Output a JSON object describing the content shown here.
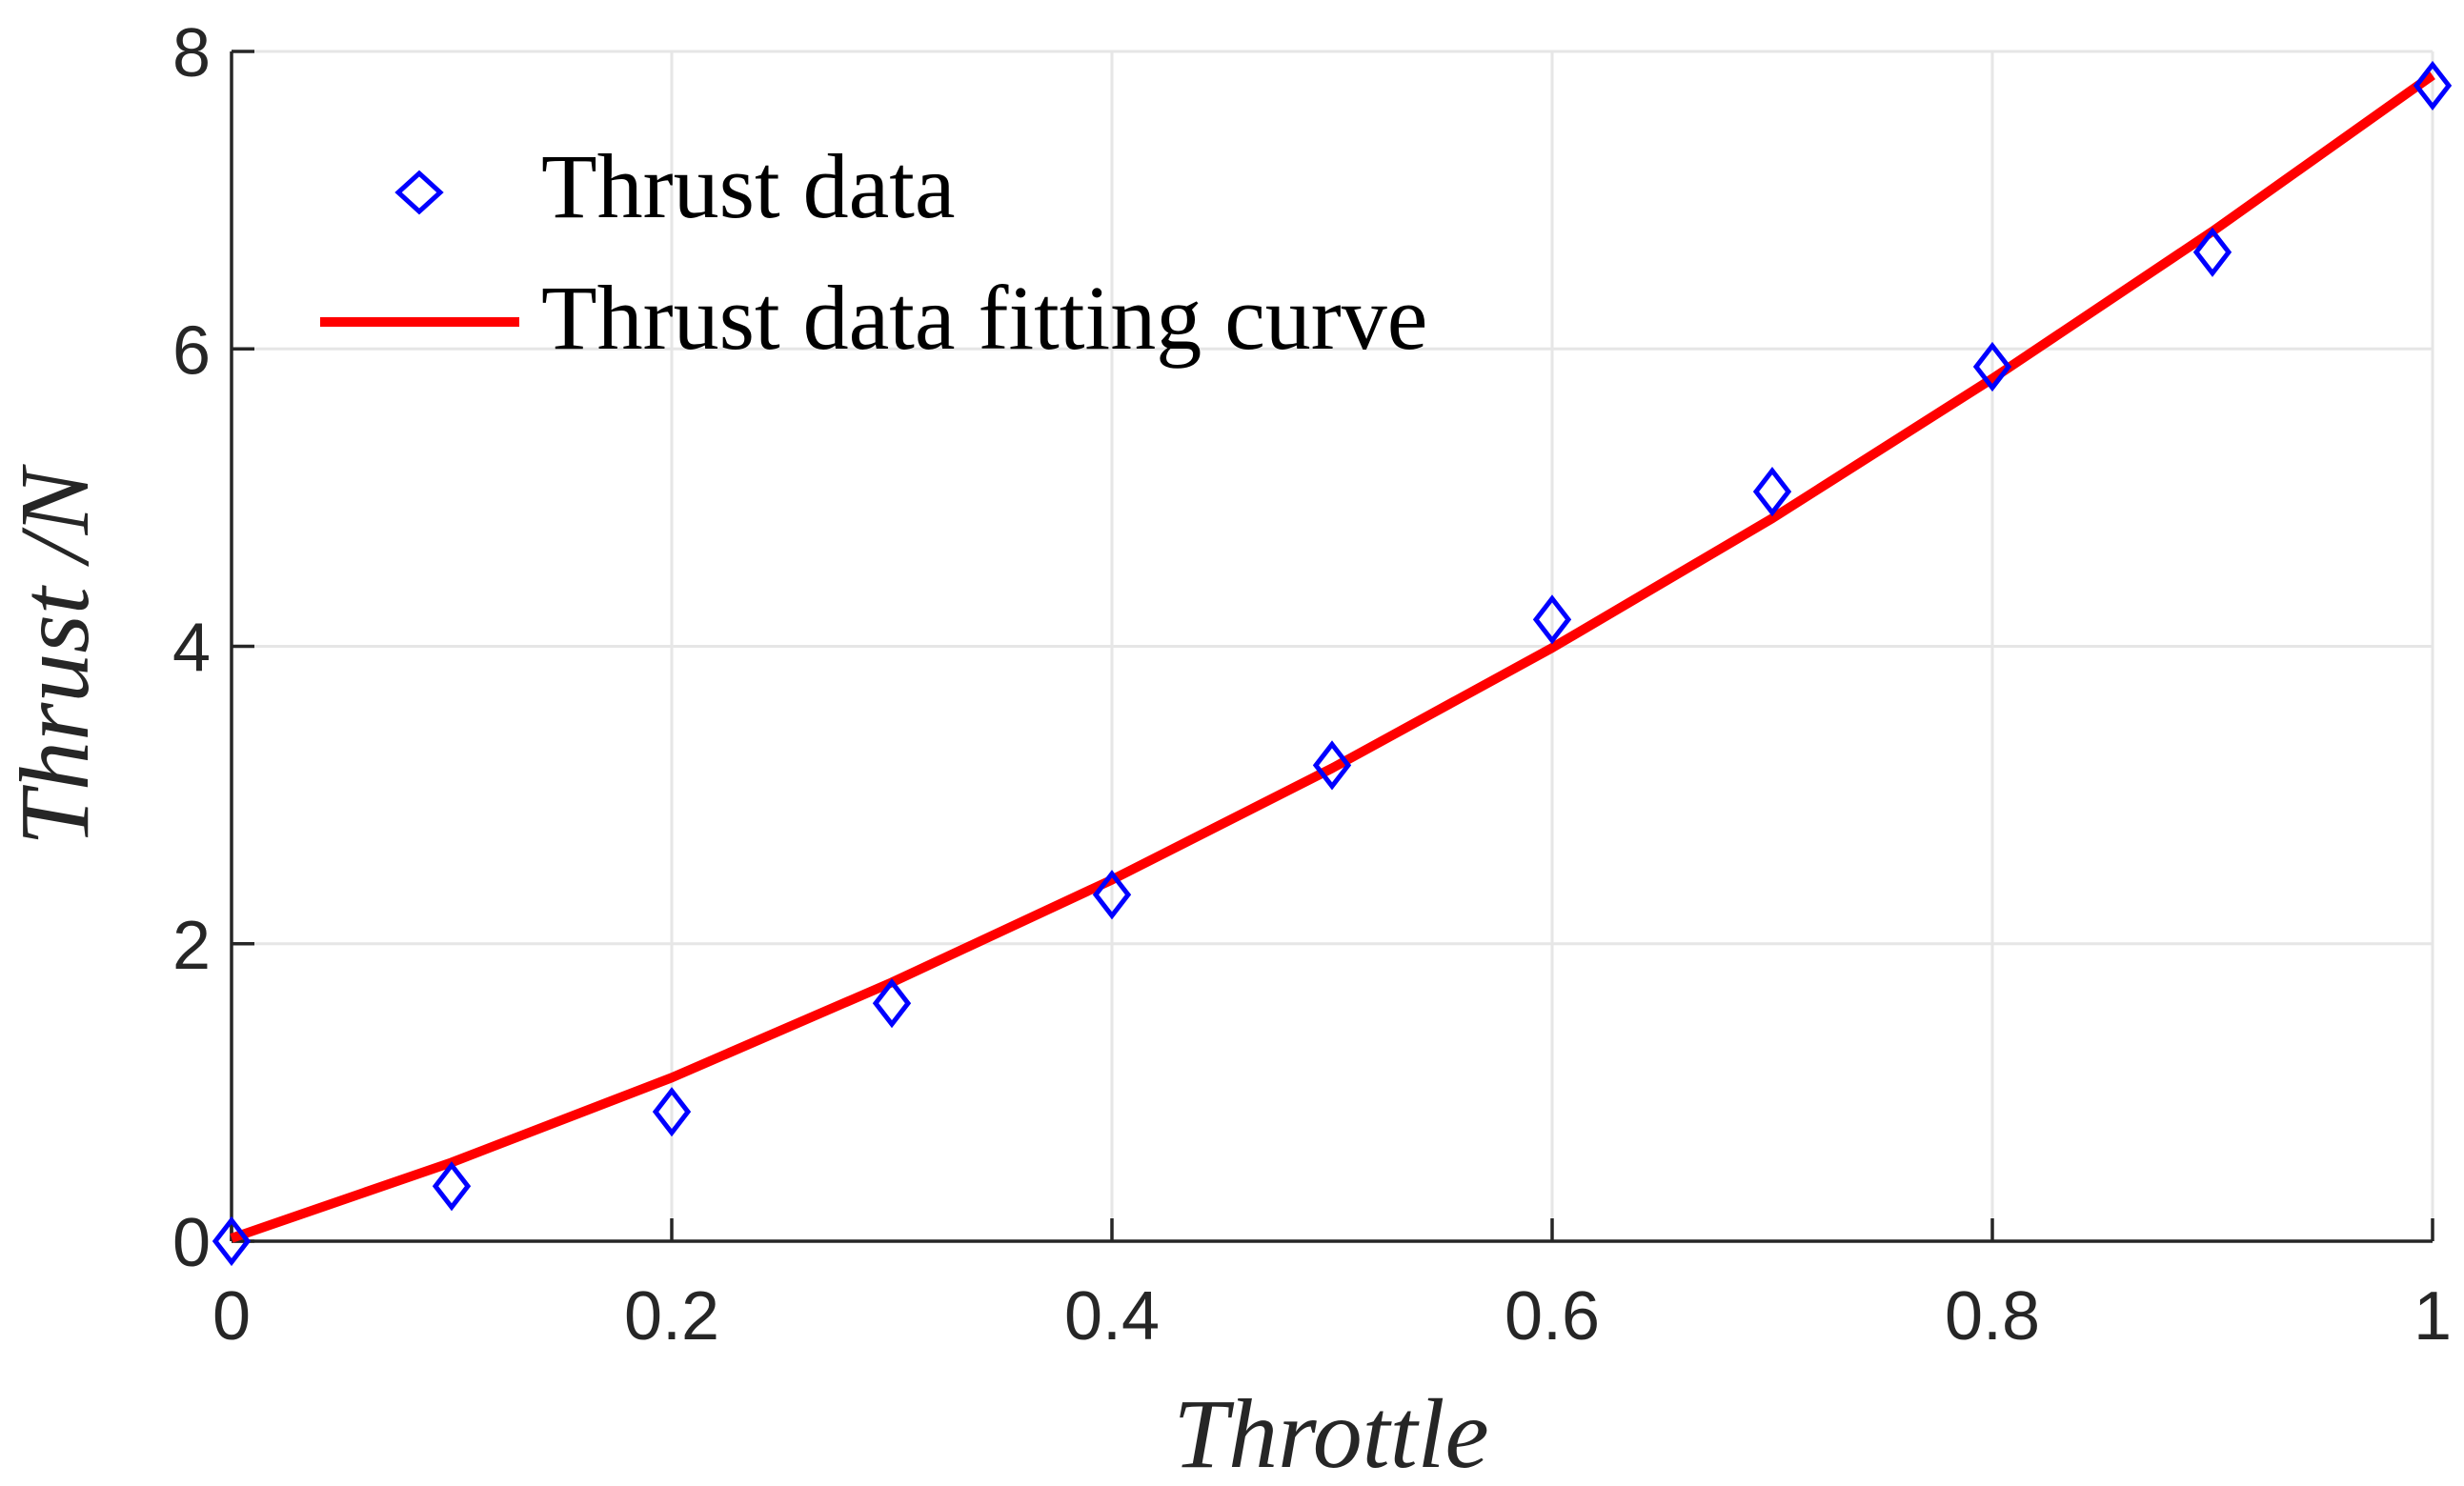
{
  "chart_data": {
    "type": "line",
    "title": "",
    "xlabel": "Throttle",
    "ylabel": "Thrust /N",
    "xlim": [
      0,
      1
    ],
    "ylim": [
      0,
      8
    ],
    "xticks": [
      0,
      0.2,
      0.4,
      0.6,
      0.8,
      1
    ],
    "xtick_labels": [
      "0",
      "0.2",
      "0.4",
      "0.6",
      "0.8",
      "1"
    ],
    "yticks": [
      0,
      2,
      4,
      6,
      8
    ],
    "ytick_labels": [
      "0",
      "2",
      "4",
      "6",
      "8"
    ],
    "grid": true,
    "legend_position": "top-left",
    "series": [
      {
        "name": "Thrust data",
        "kind": "scatter",
        "marker": "diamond",
        "color": "#0000ff",
        "x": [
          0,
          0.1,
          0.2,
          0.3,
          0.4,
          0.5,
          0.6,
          0.7,
          0.8,
          0.9,
          1.0
        ],
        "y": [
          0.0,
          0.37,
          0.87,
          1.6,
          2.33,
          3.2,
          4.18,
          5.04,
          5.88,
          6.65,
          7.77
        ]
      },
      {
        "name": "Thrust data fitting curve",
        "kind": "line",
        "color": "#ff0000",
        "x": [
          0,
          0.1,
          0.2,
          0.3,
          0.4,
          0.5,
          0.6,
          0.7,
          0.8,
          0.9,
          1.0
        ],
        "y": [
          0.02,
          0.53,
          1.1,
          1.74,
          2.43,
          3.18,
          3.99,
          4.86,
          5.8,
          6.79,
          7.84
        ]
      }
    ]
  }
}
